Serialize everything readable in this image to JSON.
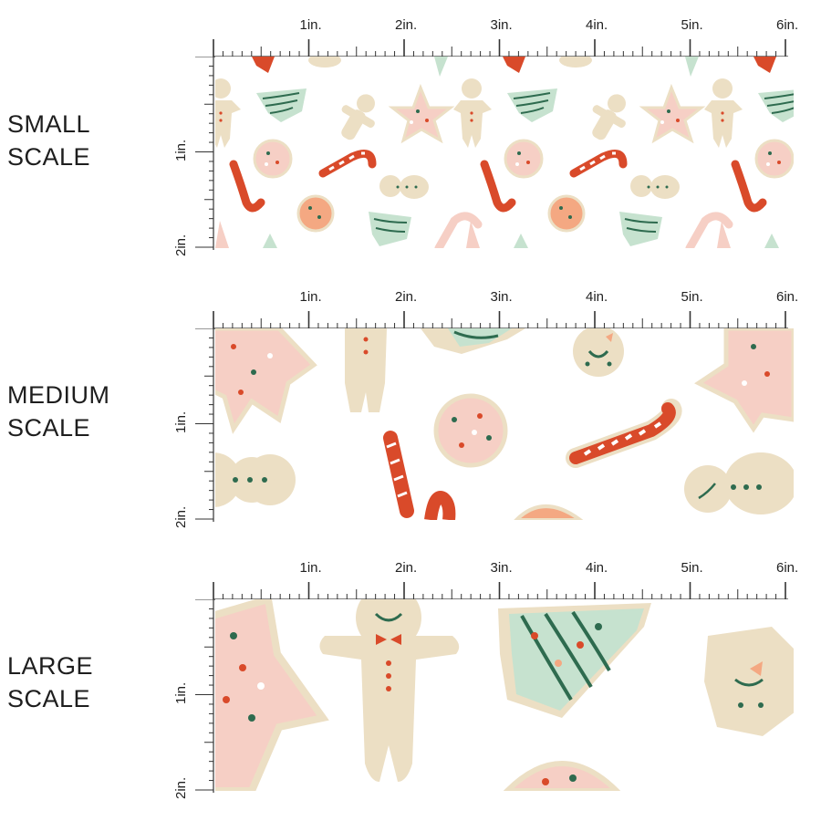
{
  "colors": {
    "background": "#ffffff",
    "cookie_tan": "#ecdfc4",
    "cookie_pink": "#f6cfc5",
    "icing_green": "#c6e2cf",
    "tree_stripe": "#2e6b4f",
    "candy_red": "#d94a2a",
    "orange_cookie": "#f4a882",
    "dot_dark_green": "#245f43",
    "ruler_ink": "#333333"
  },
  "ruler": {
    "top_labels": [
      "1in.",
      "2in.",
      "3in.",
      "4in.",
      "5in.",
      "6in."
    ],
    "side_labels": [
      "1in.",
      "2in."
    ]
  },
  "sections": [
    {
      "label_line1": "SMALL",
      "label_line2": "SCALE"
    },
    {
      "label_line1": "MEDIUM",
      "label_line2": "SCALE"
    },
    {
      "label_line1": "LARGE",
      "label_line2": "SCALE"
    }
  ],
  "motifs": {
    "icons": [
      "gingerbread-man-icon",
      "star-cookie-icon",
      "christmas-tree-cookie-icon",
      "candy-cane-icon",
      "round-sprinkle-cookie-icon",
      "snowman-cookie-icon"
    ]
  }
}
